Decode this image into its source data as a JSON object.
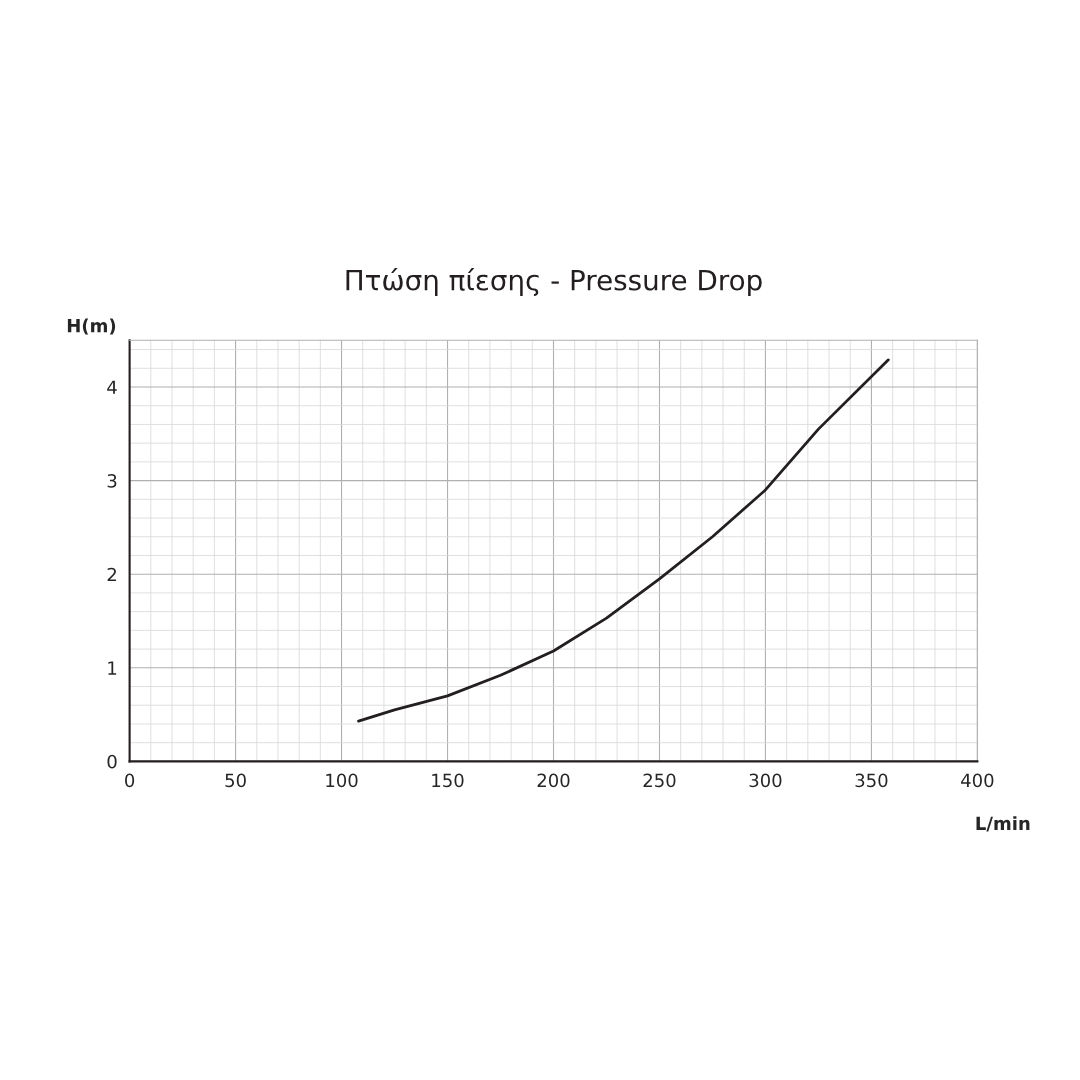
{
  "chart_data": {
    "type": "line",
    "title": "Πτώση πίεσης - Pressure Drop",
    "xlabel": "L/min",
    "ylabel": "H(m)",
    "x": [
      108,
      125,
      150,
      175,
      200,
      225,
      250,
      275,
      300,
      325,
      358
    ],
    "series": [
      {
        "color": "#231f20",
        "values": [
          0.43,
          0.55,
          0.7,
          0.92,
          1.18,
          1.53,
          1.95,
          2.4,
          2.9,
          3.55,
          4.29
        ]
      }
    ],
    "xlim": [
      0,
      400
    ],
    "ylim": [
      0,
      4.5
    ],
    "xticks": [
      0,
      50,
      100,
      150,
      200,
      250,
      300,
      350,
      400
    ],
    "yticks": [
      0,
      1,
      2,
      3,
      4
    ],
    "grid": true,
    "legend": false,
    "marker": "none",
    "line_style": "solid"
  }
}
